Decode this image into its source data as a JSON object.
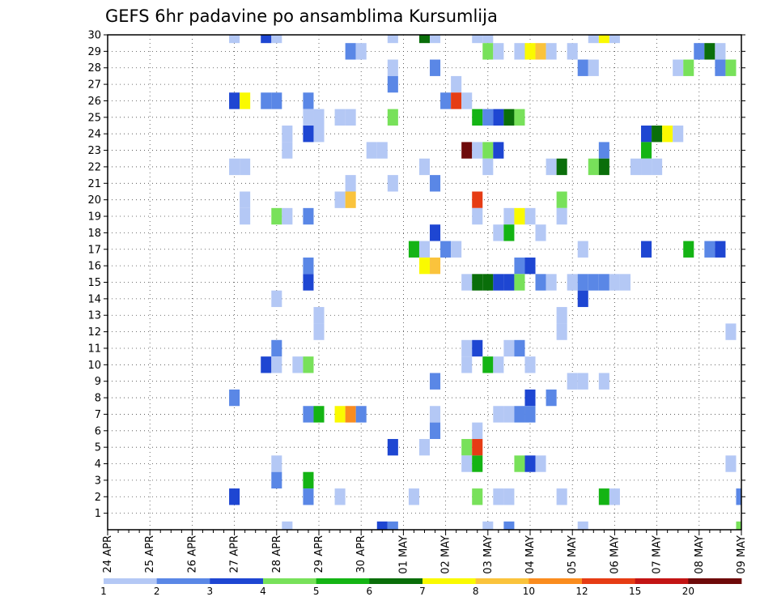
{
  "chart_data": {
    "type": "heatmap",
    "title": "GEFS 6hr padavine po ansamblima Kursumlija",
    "x_tick_labels": [
      "24 APR",
      "25 APR",
      "26 APR",
      "27 APR",
      "28 APR",
      "29 APR",
      "30 APR",
      "01 MAY",
      "02 MAY",
      "03 MAY",
      "04 MAY",
      "05 MAY",
      "06 MAY",
      "07 MAY",
      "08 MAY",
      "09 MAY"
    ],
    "y_tick_labels": [
      "1",
      "2",
      "3",
      "4",
      "5",
      "6",
      "7",
      "8",
      "9",
      "10",
      "11",
      "12",
      "13",
      "14",
      "15",
      "16",
      "17",
      "18",
      "19",
      "20",
      "21",
      "22",
      "23",
      "24",
      "25",
      "26",
      "27",
      "28",
      "29",
      "30"
    ],
    "x_unit": "6-hour step after 24 APR 00Z",
    "y_unit": "ensemble member",
    "xlim": [
      0,
      60
    ],
    "ylim": [
      0,
      30
    ],
    "grid": true,
    "legend_position": "bottom",
    "legend": {
      "labels": [
        "1",
        "2",
        "3",
        "4",
        "5",
        "6",
        "7",
        "8",
        "10",
        "12",
        "15",
        "20"
      ],
      "bins": [
        {
          "from": 1,
          "to": 2,
          "color": "#b4c8f5"
        },
        {
          "from": 2,
          "to": 3,
          "color": "#5a87e6"
        },
        {
          "from": 3,
          "to": 4,
          "color": "#1e46d2"
        },
        {
          "from": 4,
          "to": 5,
          "color": "#78e15a"
        },
        {
          "from": 5,
          "to": 6,
          "color": "#14b414"
        },
        {
          "from": 6,
          "to": 7,
          "color": "#0a6e0a"
        },
        {
          "from": 7,
          "to": 8,
          "color": "#fafa00"
        },
        {
          "from": 8,
          "to": 10,
          "color": "#fac33c"
        },
        {
          "from": 10,
          "to": 12,
          "color": "#fa8c1e"
        },
        {
          "from": 12,
          "to": 15,
          "color": "#e63c14"
        },
        {
          "from": 15,
          "to": 20,
          "color": "#c31414"
        },
        {
          "from": 20,
          "to": 30,
          "color": "#6e0a0a"
        }
      ]
    },
    "cells": [
      {
        "x": 12,
        "y": 30,
        "v": 1.5
      },
      {
        "x": 15,
        "y": 30,
        "v": 3.5
      },
      {
        "x": 16,
        "y": 30,
        "v": 1.5
      },
      {
        "x": 27,
        "y": 30,
        "v": 1.5
      },
      {
        "x": 30,
        "y": 30,
        "v": 6.5
      },
      {
        "x": 31,
        "y": 30,
        "v": 1.5
      },
      {
        "x": 35,
        "y": 30,
        "v": 1.5
      },
      {
        "x": 36,
        "y": 30,
        "v": 1.5
      },
      {
        "x": 46,
        "y": 30,
        "v": 1.5
      },
      {
        "x": 47,
        "y": 30,
        "v": 7.5
      },
      {
        "x": 48,
        "y": 30,
        "v": 1.5
      },
      {
        "x": 23,
        "y": 29,
        "v": 2.5
      },
      {
        "x": 24,
        "y": 29,
        "v": 1.5
      },
      {
        "x": 36,
        "y": 29,
        "v": 4.5
      },
      {
        "x": 37,
        "y": 29,
        "v": 1.5
      },
      {
        "x": 39,
        "y": 29,
        "v": 1.5
      },
      {
        "x": 40,
        "y": 29,
        "v": 7.5
      },
      {
        "x": 41,
        "y": 29,
        "v": 9
      },
      {
        "x": 42,
        "y": 29,
        "v": 1.5
      },
      {
        "x": 44,
        "y": 29,
        "v": 1.5
      },
      {
        "x": 56,
        "y": 29,
        "v": 2.5
      },
      {
        "x": 57,
        "y": 29,
        "v": 6.5
      },
      {
        "x": 58,
        "y": 29,
        "v": 1.5
      },
      {
        "x": 27,
        "y": 28,
        "v": 1.5
      },
      {
        "x": 31,
        "y": 28,
        "v": 2.5
      },
      {
        "x": 45,
        "y": 28,
        "v": 2.5
      },
      {
        "x": 46,
        "y": 28,
        "v": 1.5
      },
      {
        "x": 54,
        "y": 28,
        "v": 1.5
      },
      {
        "x": 55,
        "y": 28,
        "v": 4.5
      },
      {
        "x": 58,
        "y": 28,
        "v": 2.5
      },
      {
        "x": 59,
        "y": 28,
        "v": 4.5
      },
      {
        "x": 27,
        "y": 27,
        "v": 2.5
      },
      {
        "x": 33,
        "y": 27,
        "v": 1.5
      },
      {
        "x": 12,
        "y": 26,
        "v": 3.5
      },
      {
        "x": 13,
        "y": 26,
        "v": 7.5
      },
      {
        "x": 15,
        "y": 26,
        "v": 2.5
      },
      {
        "x": 16,
        "y": 26,
        "v": 2.5
      },
      {
        "x": 19,
        "y": 26,
        "v": 2.5
      },
      {
        "x": 32,
        "y": 26,
        "v": 2.5
      },
      {
        "x": 33,
        "y": 26,
        "v": 13
      },
      {
        "x": 34,
        "y": 26,
        "v": 1.5
      },
      {
        "x": 19,
        "y": 25,
        "v": 1.5
      },
      {
        "x": 20,
        "y": 25,
        "v": 1.5
      },
      {
        "x": 22,
        "y": 25,
        "v": 1.5
      },
      {
        "x": 23,
        "y": 25,
        "v": 1.5
      },
      {
        "x": 27,
        "y": 25,
        "v": 4.5
      },
      {
        "x": 35,
        "y": 25,
        "v": 5.5
      },
      {
        "x": 36,
        "y": 25,
        "v": 2.5
      },
      {
        "x": 37,
        "y": 25,
        "v": 3.5
      },
      {
        "x": 38,
        "y": 25,
        "v": 6.5
      },
      {
        "x": 39,
        "y": 25,
        "v": 4.5
      },
      {
        "x": 17,
        "y": 24,
        "v": 1.5
      },
      {
        "x": 19,
        "y": 24,
        "v": 3.5
      },
      {
        "x": 20,
        "y": 24,
        "v": 1.5
      },
      {
        "x": 51,
        "y": 24,
        "v": 3.5
      },
      {
        "x": 52,
        "y": 24,
        "v": 6.5
      },
      {
        "x": 53,
        "y": 24,
        "v": 7.5
      },
      {
        "x": 54,
        "y": 24,
        "v": 1.5
      },
      {
        "x": 17,
        "y": 23,
        "v": 1.5
      },
      {
        "x": 25,
        "y": 23,
        "v": 1.5
      },
      {
        "x": 26,
        "y": 23,
        "v": 1.5
      },
      {
        "x": 34,
        "y": 23,
        "v": 25
      },
      {
        "x": 35,
        "y": 23,
        "v": 1.5
      },
      {
        "x": 36,
        "y": 23,
        "v": 4.5
      },
      {
        "x": 37,
        "y": 23,
        "v": 3.5
      },
      {
        "x": 47,
        "y": 23,
        "v": 2.5
      },
      {
        "x": 51,
        "y": 23,
        "v": 5.5
      },
      {
        "x": 12,
        "y": 22,
        "v": 1.5
      },
      {
        "x": 13,
        "y": 22,
        "v": 1.5
      },
      {
        "x": 30,
        "y": 22,
        "v": 1.5
      },
      {
        "x": 36,
        "y": 22,
        "v": 1.5
      },
      {
        "x": 42,
        "y": 22,
        "v": 1.5
      },
      {
        "x": 43,
        "y": 22,
        "v": 6.5
      },
      {
        "x": 46,
        "y": 22,
        "v": 4.5
      },
      {
        "x": 47,
        "y": 22,
        "v": 6.5
      },
      {
        "x": 50,
        "y": 22,
        "v": 1.5
      },
      {
        "x": 51,
        "y": 22,
        "v": 1.5
      },
      {
        "x": 52,
        "y": 22,
        "v": 1.5
      },
      {
        "x": 23,
        "y": 21,
        "v": 1.5
      },
      {
        "x": 27,
        "y": 21,
        "v": 1.5
      },
      {
        "x": 31,
        "y": 21,
        "v": 2.5
      },
      {
        "x": 13,
        "y": 20,
        "v": 1.5
      },
      {
        "x": 22,
        "y": 20,
        "v": 1.5
      },
      {
        "x": 23,
        "y": 20,
        "v": 9
      },
      {
        "x": 35,
        "y": 20,
        "v": 13
      },
      {
        "x": 43,
        "y": 20,
        "v": 4.5
      },
      {
        "x": 13,
        "y": 19,
        "v": 1.5
      },
      {
        "x": 16,
        "y": 19,
        "v": 4.5
      },
      {
        "x": 17,
        "y": 19,
        "v": 1.5
      },
      {
        "x": 19,
        "y": 19,
        "v": 2.5
      },
      {
        "x": 35,
        "y": 19,
        "v": 1.5
      },
      {
        "x": 38,
        "y": 19,
        "v": 1.5
      },
      {
        "x": 39,
        "y": 19,
        "v": 7.5
      },
      {
        "x": 40,
        "y": 19,
        "v": 1.5
      },
      {
        "x": 43,
        "y": 19,
        "v": 1.5
      },
      {
        "x": 31,
        "y": 18,
        "v": 3.5
      },
      {
        "x": 37,
        "y": 18,
        "v": 1.5
      },
      {
        "x": 38,
        "y": 18,
        "v": 5.5
      },
      {
        "x": 41,
        "y": 18,
        "v": 1.5
      },
      {
        "x": 29,
        "y": 17,
        "v": 5.5
      },
      {
        "x": 30,
        "y": 17,
        "v": 1.5
      },
      {
        "x": 32,
        "y": 17,
        "v": 2.5
      },
      {
        "x": 33,
        "y": 17,
        "v": 1.5
      },
      {
        "x": 45,
        "y": 17,
        "v": 1.5
      },
      {
        "x": 51,
        "y": 17,
        "v": 3.5
      },
      {
        "x": 55,
        "y": 17,
        "v": 5.5
      },
      {
        "x": 57,
        "y": 17,
        "v": 2.5
      },
      {
        "x": 58,
        "y": 17,
        "v": 3.5
      },
      {
        "x": 19,
        "y": 16,
        "v": 2.5
      },
      {
        "x": 30,
        "y": 16,
        "v": 7.5
      },
      {
        "x": 31,
        "y": 16,
        "v": 9
      },
      {
        "x": 39,
        "y": 16,
        "v": 2.5
      },
      {
        "x": 40,
        "y": 16,
        "v": 3.5
      },
      {
        "x": 19,
        "y": 15,
        "v": 3.5
      },
      {
        "x": 34,
        "y": 15,
        "v": 1.5
      },
      {
        "x": 35,
        "y": 15,
        "v": 6.5
      },
      {
        "x": 36,
        "y": 15,
        "v": 6.5
      },
      {
        "x": 37,
        "y": 15,
        "v": 3.5
      },
      {
        "x": 38,
        "y": 15,
        "v": 3.5
      },
      {
        "x": 39,
        "y": 15,
        "v": 4.5
      },
      {
        "x": 41,
        "y": 15,
        "v": 2.5
      },
      {
        "x": 42,
        "y": 15,
        "v": 1.5
      },
      {
        "x": 44,
        "y": 15,
        "v": 1.5
      },
      {
        "x": 45,
        "y": 15,
        "v": 2.5
      },
      {
        "x": 46,
        "y": 15,
        "v": 2.5
      },
      {
        "x": 47,
        "y": 15,
        "v": 2.5
      },
      {
        "x": 48,
        "y": 15,
        "v": 1.5
      },
      {
        "x": 49,
        "y": 15,
        "v": 1.5
      },
      {
        "x": 16,
        "y": 14,
        "v": 1.5
      },
      {
        "x": 45,
        "y": 14,
        "v": 3.5
      },
      {
        "x": 20,
        "y": 13,
        "v": 1.5
      },
      {
        "x": 43,
        "y": 13,
        "v": 1.5
      },
      {
        "x": 20,
        "y": 12,
        "v": 1.5
      },
      {
        "x": 43,
        "y": 12,
        "v": 1.5
      },
      {
        "x": 59,
        "y": 12,
        "v": 1.5
      },
      {
        "x": 16,
        "y": 11,
        "v": 2.5
      },
      {
        "x": 34,
        "y": 11,
        "v": 1.5
      },
      {
        "x": 35,
        "y": 11,
        "v": 3.5
      },
      {
        "x": 38,
        "y": 11,
        "v": 1.5
      },
      {
        "x": 39,
        "y": 11,
        "v": 2.5
      },
      {
        "x": 15,
        "y": 10,
        "v": 3.5
      },
      {
        "x": 16,
        "y": 10,
        "v": 1.5
      },
      {
        "x": 18,
        "y": 10,
        "v": 1.5
      },
      {
        "x": 19,
        "y": 10,
        "v": 4.5
      },
      {
        "x": 34,
        "y": 10,
        "v": 1.5
      },
      {
        "x": 36,
        "y": 10,
        "v": 5.5
      },
      {
        "x": 37,
        "y": 10,
        "v": 1.5
      },
      {
        "x": 40,
        "y": 10,
        "v": 1.5
      },
      {
        "x": 31,
        "y": 9,
        "v": 2.5
      },
      {
        "x": 44,
        "y": 9,
        "v": 1.5
      },
      {
        "x": 45,
        "y": 9,
        "v": 1.5
      },
      {
        "x": 47,
        "y": 9,
        "v": 1.5
      },
      {
        "x": 12,
        "y": 8,
        "v": 2.5
      },
      {
        "x": 40,
        "y": 8,
        "v": 3.5
      },
      {
        "x": 42,
        "y": 8,
        "v": 2.5
      },
      {
        "x": 19,
        "y": 7,
        "v": 2.5
      },
      {
        "x": 20,
        "y": 7,
        "v": 5.5
      },
      {
        "x": 22,
        "y": 7,
        "v": 7.5
      },
      {
        "x": 23,
        "y": 7,
        "v": 11
      },
      {
        "x": 24,
        "y": 7,
        "v": 2.5
      },
      {
        "x": 31,
        "y": 7,
        "v": 1.5
      },
      {
        "x": 37,
        "y": 7,
        "v": 1.5
      },
      {
        "x": 38,
        "y": 7,
        "v": 1.5
      },
      {
        "x": 39,
        "y": 7,
        "v": 2.5
      },
      {
        "x": 40,
        "y": 7,
        "v": 2.5
      },
      {
        "x": 31,
        "y": 6,
        "v": 2.5
      },
      {
        "x": 35,
        "y": 6,
        "v": 1.5
      },
      {
        "x": 27,
        "y": 5,
        "v": 3.5
      },
      {
        "x": 30,
        "y": 5,
        "v": 1.5
      },
      {
        "x": 34,
        "y": 5,
        "v": 4.5
      },
      {
        "x": 35,
        "y": 5,
        "v": 13
      },
      {
        "x": 16,
        "y": 4,
        "v": 1.5
      },
      {
        "x": 16,
        "y": 3,
        "v": 2.5
      },
      {
        "x": 19,
        "y": 3,
        "v": 5.5
      },
      {
        "x": 34,
        "y": 4,
        "v": 1.5
      },
      {
        "x": 35,
        "y": 4,
        "v": 5.5
      },
      {
        "x": 39,
        "y": 4,
        "v": 4.5
      },
      {
        "x": 40,
        "y": 4,
        "v": 3.5
      },
      {
        "x": 41,
        "y": 4,
        "v": 1.5
      },
      {
        "x": 59,
        "y": 4,
        "v": 1.5
      },
      {
        "x": 12,
        "y": 2,
        "v": 3.5
      },
      {
        "x": 19,
        "y": 2,
        "v": 2.5
      },
      {
        "x": 22,
        "y": 2,
        "v": 1.5
      },
      {
        "x": 29,
        "y": 2,
        "v": 1.5
      },
      {
        "x": 35,
        "y": 2,
        "v": 4.5
      },
      {
        "x": 37,
        "y": 2,
        "v": 1.5
      },
      {
        "x": 38,
        "y": 2,
        "v": 1.5
      },
      {
        "x": 43,
        "y": 2,
        "v": 1.5
      },
      {
        "x": 47,
        "y": 2,
        "v": 5.5
      },
      {
        "x": 48,
        "y": 2,
        "v": 1.5
      },
      {
        "x": 60,
        "y": 2,
        "v": 2.5
      },
      {
        "x": 17,
        "y": 0,
        "v": 1.5
      },
      {
        "x": 26,
        "y": 0,
        "v": 3.5
      },
      {
        "x": 27,
        "y": 0,
        "v": 2.5
      },
      {
        "x": 36,
        "y": 0,
        "v": 1.5
      },
      {
        "x": 38,
        "y": 0,
        "v": 2.5
      },
      {
        "x": 45,
        "y": 0,
        "v": 1.5
      },
      {
        "x": 60,
        "y": 0,
        "v": 4.5
      }
    ]
  }
}
